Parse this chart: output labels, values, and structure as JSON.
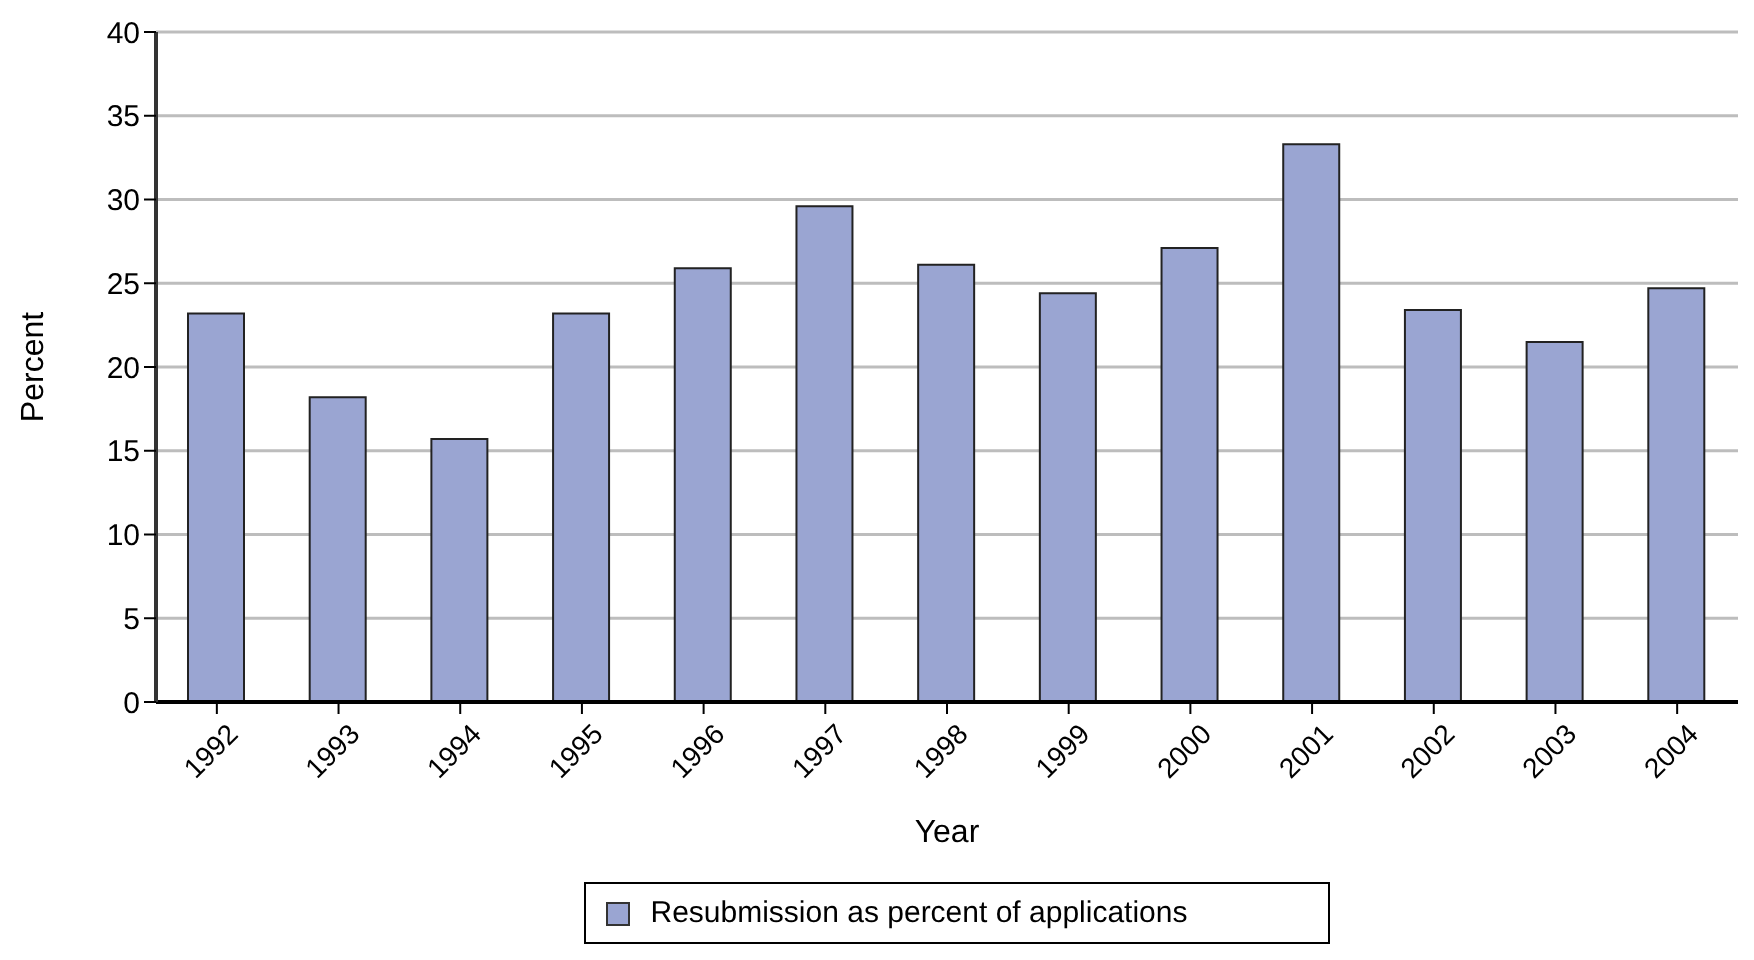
{
  "chart_data": {
    "type": "bar",
    "xlabel": "Year",
    "ylabel": "Percent",
    "categories": [
      "1992",
      "1993",
      "1994",
      "1995",
      "1996",
      "1997",
      "1998",
      "1999",
      "2000",
      "2001",
      "2002",
      "2003",
      "2004"
    ],
    "series": [
      {
        "name": "Resubmission as percent of applications",
        "color": "#9aa5d2",
        "values": [
          23.2,
          18.2,
          15.7,
          23.2,
          25.9,
          29.6,
          26.1,
          24.4,
          27.1,
          33.3,
          23.4,
          21.5,
          24.7
        ]
      }
    ],
    "ylim": [
      0,
      40
    ],
    "yticks": [
      0,
      5,
      10,
      15,
      20,
      25,
      30,
      35,
      40
    ],
    "grid": "y",
    "legend": "bottom"
  }
}
